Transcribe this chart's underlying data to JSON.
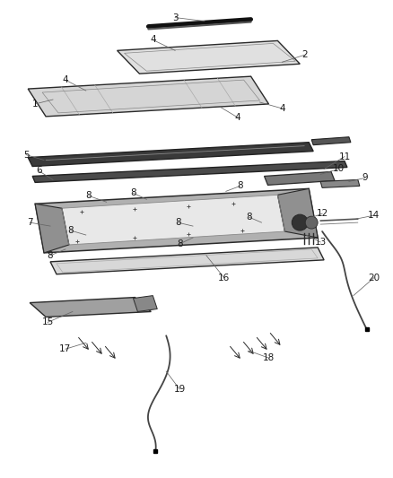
{
  "bg_color": "#ffffff",
  "line_color": "#2a2a2a",
  "label_color": "#1a1a1a",
  "figsize": [
    4.38,
    5.33
  ],
  "dpi": 100
}
